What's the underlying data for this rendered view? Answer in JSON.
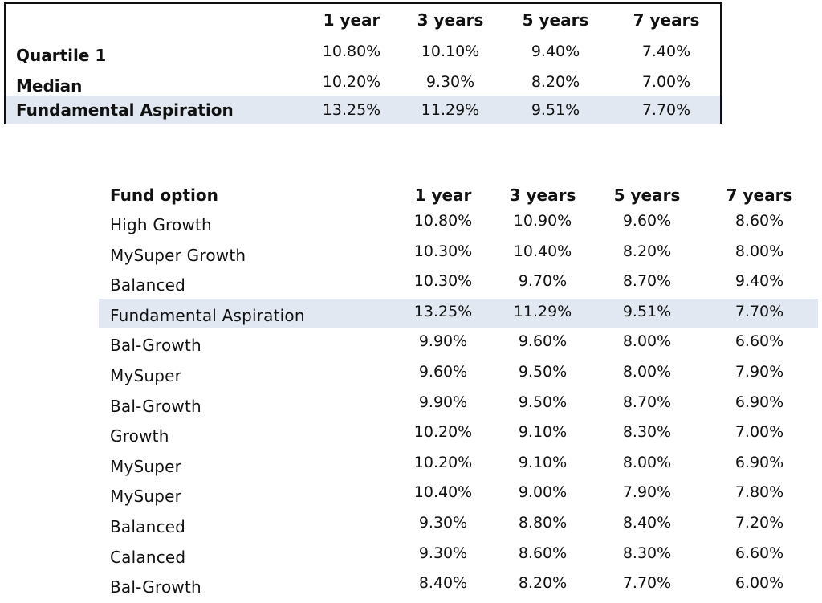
{
  "top_table": {
    "headers": [
      "1 year",
      "3 years",
      "5 years",
      "7 years"
    ],
    "rows": [
      {
        "label": "Quartile 1",
        "values": [
          "10.80%",
          "10.10%",
          "9.40%",
          "7.40%"
        ],
        "highlight": false
      },
      {
        "label": "Median",
        "values": [
          "10.20%",
          "9.30%",
          "8.20%",
          "7.00%"
        ],
        "highlight": false
      },
      {
        "label": "Fundamental Aspiration",
        "values": [
          "13.25%",
          "11.29%",
          "9.51%",
          "7.70%"
        ],
        "highlight": true
      }
    ]
  },
  "fund_table": {
    "name_header": "Fund option",
    "headers": [
      "1 year",
      "3 years",
      "5 years",
      "7 years"
    ],
    "rows": [
      {
        "name": "High Growth",
        "values": [
          "10.80%",
          "10.90%",
          "9.60%",
          "8.60%"
        ],
        "highlight": false
      },
      {
        "name": "MySuper Growth",
        "values": [
          "10.30%",
          "10.40%",
          "8.20%",
          "8.00%"
        ],
        "highlight": false
      },
      {
        "name": "Balanced",
        "values": [
          "10.30%",
          "9.70%",
          "8.70%",
          "9.40%"
        ],
        "highlight": false
      },
      {
        "name": "Fundamental Aspiration",
        "values": [
          "13.25%",
          "11.29%",
          "9.51%",
          "7.70%"
        ],
        "highlight": true
      },
      {
        "name": "Bal-Growth",
        "values": [
          "9.90%",
          "9.60%",
          "8.00%",
          "6.60%"
        ],
        "highlight": false
      },
      {
        "name": "MySuper",
        "values": [
          "9.60%",
          "9.50%",
          "8.00%",
          "7.90%"
        ],
        "highlight": false
      },
      {
        "name": "Bal-Growth",
        "values": [
          "9.90%",
          "9.50%",
          "8.70%",
          "6.90%"
        ],
        "highlight": false
      },
      {
        "name": "Growth",
        "values": [
          "10.20%",
          "9.10%",
          "8.30%",
          "7.00%"
        ],
        "highlight": false
      },
      {
        "name": "MySuper",
        "values": [
          "10.20%",
          "9.10%",
          "8.00%",
          "6.90%"
        ],
        "highlight": false
      },
      {
        "name": "MySuper",
        "values": [
          "10.40%",
          "9.00%",
          "7.90%",
          "7.80%"
        ],
        "highlight": false
      },
      {
        "name": "Balanced",
        "values": [
          "9.30%",
          "8.80%",
          "8.40%",
          "7.20%"
        ],
        "highlight": false
      },
      {
        "name": "Calanced",
        "values": [
          "9.30%",
          "8.60%",
          "8.30%",
          "6.60%"
        ],
        "highlight": false
      },
      {
        "name": "Bal-Growth",
        "values": [
          "8.40%",
          "8.20%",
          "7.70%",
          "6.00%"
        ],
        "highlight": false
      }
    ]
  },
  "colors": {
    "highlight": "#e1e8f1",
    "border": "#111111"
  }
}
